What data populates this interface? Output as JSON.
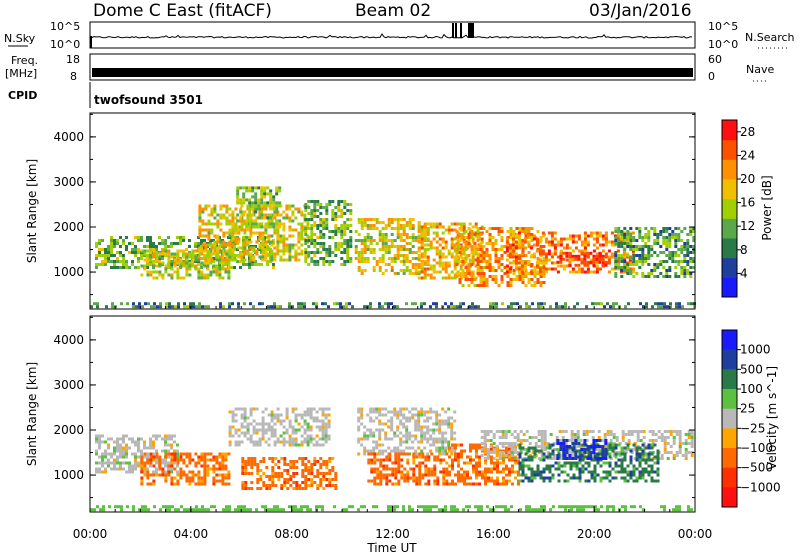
{
  "header": {
    "station": "Dome C East (fitACF)",
    "beam": "Beam 02",
    "date": "03/Jan/2016"
  },
  "strip_panels": {
    "sky": {
      "left_label": "N.Sky",
      "right_label": "N.Search",
      "left_ticks": [
        "10^5",
        "10^0"
      ],
      "right_ticks": [
        "10^5",
        "10^0"
      ]
    },
    "freq": {
      "label_line1": "Freq.",
      "label_line2": "[MHz]",
      "right_label": "Nave",
      "left_ticks": [
        "18",
        "8"
      ],
      "right_ticks": [
        "60",
        "0"
      ]
    },
    "cpid": {
      "label": "CPID",
      "value": "twofsound 3501"
    }
  },
  "colors": {
    "power_scale": [
      "#1a1aff",
      "#1f3f9e",
      "#2a7a48",
      "#5aa84a",
      "#a0d000",
      "#f0c000",
      "#ff9000",
      "#ff5000",
      "#ff1010"
    ],
    "velocity_scale": [
      "#1a1aff",
      "#1f3f9e",
      "#2a7a48",
      "#5cc040",
      "#b8b8b8",
      "#ffa500",
      "#ff6a00",
      "#ff3000",
      "#ff1010"
    ]
  },
  "chart_data": [
    {
      "type": "heatmap",
      "name": "power-panel",
      "ylabel": "Slant Range [km]",
      "xlabel": "Time UT",
      "x_ticks": [
        "00:00",
        "04:00",
        "08:00",
        "12:00",
        "16:00",
        "20:00",
        "00:00"
      ],
      "x_range_hours": [
        0,
        24
      ],
      "y_ticks": [
        1000,
        2000,
        3000,
        4000
      ],
      "ylim": [
        180,
        4530
      ],
      "colorbar": {
        "label": "Power [dB]",
        "ticks": [
          "4",
          "8",
          "12",
          "16",
          "20",
          "24",
          "28"
        ],
        "range": [
          0,
          30
        ]
      },
      "regions": [
        {
          "t0": 0.2,
          "t1": 7.3,
          "r0": 1100,
          "r1": 1800,
          "level": 12
        },
        {
          "t0": 2.0,
          "t1": 5.5,
          "r0": 900,
          "r1": 1500,
          "level": 16
        },
        {
          "t0": 4.3,
          "t1": 8.6,
          "r0": 1300,
          "r1": 2500,
          "level": 18
        },
        {
          "t0": 5.8,
          "t1": 7.5,
          "r0": 2000,
          "r1": 2900,
          "level": 14
        },
        {
          "t0": 8.5,
          "t1": 10.4,
          "r0": 1200,
          "r1": 2600,
          "level": 12
        },
        {
          "t0": 10.5,
          "t1": 13.4,
          "r0": 1000,
          "r1": 2200,
          "level": 18
        },
        {
          "t0": 13.0,
          "t1": 15.5,
          "r0": 900,
          "r1": 2100,
          "level": 20
        },
        {
          "t0": 14.5,
          "t1": 18.0,
          "r0": 700,
          "r1": 2000,
          "level": 22
        },
        {
          "t0": 16.5,
          "t1": 21.5,
          "r0": 1000,
          "r1": 1900,
          "level": 24
        },
        {
          "t0": 18.5,
          "t1": 20.5,
          "r0": 1150,
          "r1": 1450,
          "level": 28
        },
        {
          "t0": 20.8,
          "t1": 23.9,
          "r0": 900,
          "r1": 2000,
          "level": 10
        },
        {
          "t0": 0.0,
          "t1": 24.0,
          "r0": 200,
          "r1": 330,
          "level": 8
        }
      ]
    },
    {
      "type": "heatmap",
      "name": "velocity-panel",
      "ylabel": "Slant Range [km]",
      "xlabel": "Time UT",
      "x_ticks": [
        "00:00",
        "04:00",
        "08:00",
        "12:00",
        "16:00",
        "20:00",
        "00:00"
      ],
      "x_range_hours": [
        0,
        24
      ],
      "y_ticks": [
        1000,
        2000,
        3000,
        4000
      ],
      "ylim": [
        180,
        4530
      ],
      "colorbar": {
        "label": "Velocity [m s^-1]",
        "ticks": [
          "1000",
          "500",
          "100",
          "25",
          "−25",
          "−100",
          "−500",
          "−1000"
        ]
      },
      "regions": [
        {
          "t0": 0.2,
          "t1": 3.5,
          "r0": 1100,
          "r1": 1900,
          "level": "gray"
        },
        {
          "t0": 2.0,
          "t1": 5.5,
          "r0": 800,
          "r1": 1500,
          "level": "orange"
        },
        {
          "t0": 5.5,
          "t1": 9.5,
          "r0": 1700,
          "r1": 2500,
          "level": "gray"
        },
        {
          "t0": 6.0,
          "t1": 9.8,
          "r0": 700,
          "r1": 1400,
          "level": "orange"
        },
        {
          "t0": 10.6,
          "t1": 14.5,
          "r0": 1500,
          "r1": 2500,
          "level": "gray"
        },
        {
          "t0": 11.0,
          "t1": 14.2,
          "r0": 800,
          "r1": 1500,
          "level": "orange"
        },
        {
          "t0": 14.2,
          "t1": 17.0,
          "r0": 800,
          "r1": 1700,
          "level": "orange"
        },
        {
          "t0": 15.5,
          "t1": 23.9,
          "r0": 1400,
          "r1": 2000,
          "level": "gray"
        },
        {
          "t0": 17.0,
          "t1": 22.5,
          "r0": 900,
          "r1": 1700,
          "level": "green"
        },
        {
          "t0": 18.5,
          "t1": 20.5,
          "r0": 1400,
          "r1": 1800,
          "level": "blue"
        },
        {
          "t0": 0.0,
          "t1": 24.0,
          "r0": 200,
          "r1": 330,
          "level": "lightgreen"
        }
      ]
    }
  ],
  "axes_text": {
    "range_label": "Slant Range [km]",
    "time_label": "Time UT"
  }
}
